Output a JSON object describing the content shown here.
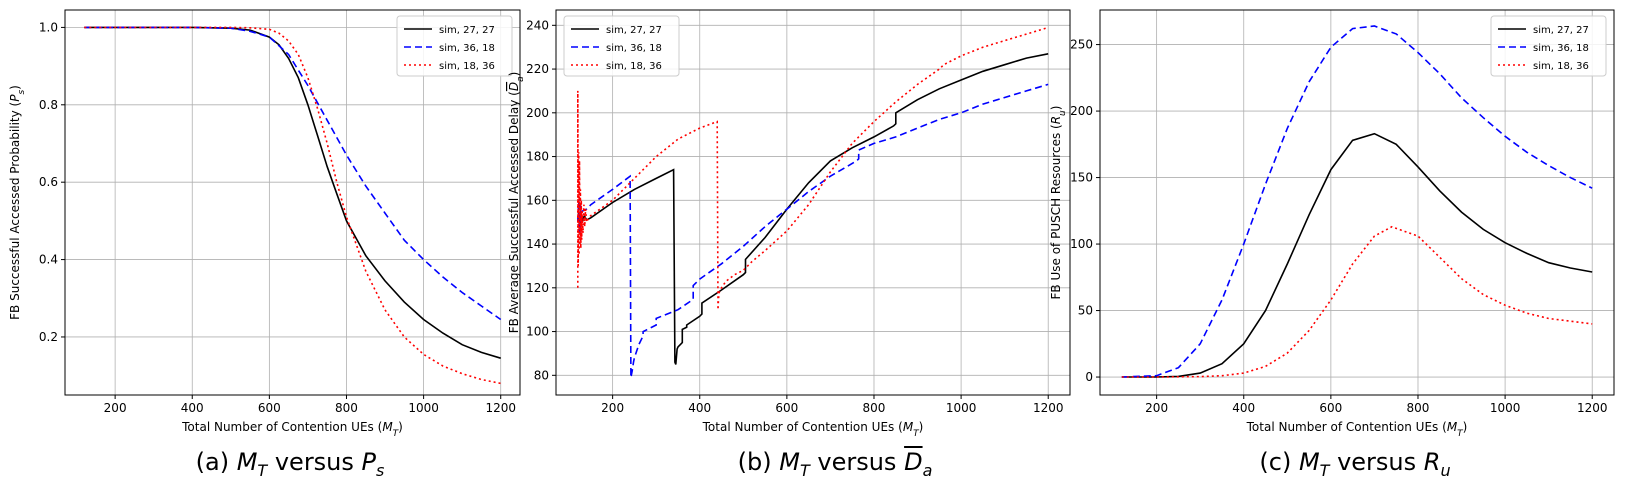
{
  "captions": [
    {
      "prefix": "(a)",
      "lhs": "M",
      "lhs_sub": "T",
      "mid": "versus",
      "rhs": "P",
      "rhs_sub": "s",
      "rhs_overline": false
    },
    {
      "prefix": "(b)",
      "lhs": "M",
      "lhs_sub": "T",
      "mid": "versus",
      "rhs": "D",
      "rhs_sub": "a",
      "rhs_overline": true
    },
    {
      "prefix": "(c)",
      "lhs": "M",
      "lhs_sub": "T",
      "mid": "versus",
      "rhs": "R",
      "rhs_sub": "u",
      "rhs_overline": false
    }
  ],
  "colors": {
    "sim_27_27": "#000000",
    "sim_36_18": "#0000ff",
    "sim_18_36": "#ff0000",
    "grid": "#b0b0b0"
  },
  "chart_data": [
    {
      "type": "line",
      "xlabel": "Total Number of Contention UEs (M_T)",
      "ylabel": "FB Successful Accessed Probability (P_s)",
      "xlim": [
        70,
        1250
      ],
      "ylim": [
        0.05,
        1.045
      ],
      "xticks": [
        200,
        400,
        600,
        800,
        1000,
        1200
      ],
      "yticks": [
        0.2,
        0.4,
        0.6,
        0.8,
        1.0
      ],
      "ytick_labels": [
        "0.2",
        "0.4",
        "0.6",
        "0.8",
        "1.0"
      ],
      "grid": true,
      "legend": "upper-right",
      "series": [
        {
          "name": "sim, 27, 27",
          "style": "solid",
          "color": "#000000",
          "x": [
            120,
            200,
            300,
            400,
            500,
            550,
            600,
            625,
            650,
            675,
            700,
            725,
            750,
            775,
            800,
            850,
            900,
            950,
            1000,
            1050,
            1100,
            1150,
            1200
          ],
          "y": [
            1.0,
            1.0,
            1.0,
            1.0,
            0.998,
            0.993,
            0.975,
            0.955,
            0.92,
            0.87,
            0.8,
            0.72,
            0.64,
            0.57,
            0.5,
            0.41,
            0.345,
            0.29,
            0.245,
            0.21,
            0.18,
            0.16,
            0.145
          ]
        },
        {
          "name": "sim, 36, 18",
          "style": "dashed",
          "color": "#0000ff",
          "x": [
            120,
            200,
            300,
            400,
            500,
            550,
            600,
            650,
            700,
            750,
            800,
            850,
            900,
            950,
            1000,
            1050,
            1100,
            1150,
            1200
          ],
          "y": [
            1.0,
            1.0,
            1.0,
            1.0,
            0.998,
            0.99,
            0.975,
            0.93,
            0.85,
            0.76,
            0.67,
            0.59,
            0.52,
            0.45,
            0.4,
            0.355,
            0.315,
            0.28,
            0.245
          ]
        },
        {
          "name": "sim, 18, 36",
          "style": "dotted",
          "color": "#ff0000",
          "x": [
            120,
            200,
            300,
            400,
            500,
            550,
            600,
            625,
            650,
            675,
            700,
            725,
            750,
            775,
            800,
            850,
            900,
            950,
            1000,
            1050,
            1100,
            1150,
            1200
          ],
          "y": [
            1.0,
            1.0,
            1.0,
            1.0,
            1.0,
            0.999,
            0.995,
            0.985,
            0.965,
            0.93,
            0.87,
            0.79,
            0.7,
            0.6,
            0.51,
            0.37,
            0.27,
            0.2,
            0.155,
            0.125,
            0.105,
            0.09,
            0.08
          ]
        }
      ]
    },
    {
      "type": "line",
      "xlabel": "Total Number of Contention UEs (M_T)",
      "ylabel": "FB Average Successful Accessed Delay (D_a)",
      "xlim": [
        70,
        1250
      ],
      "ylim": [
        71,
        247
      ],
      "xticks": [
        200,
        400,
        600,
        800,
        1000,
        1200
      ],
      "yticks": [
        80,
        100,
        120,
        140,
        160,
        180,
        200,
        220,
        240
      ],
      "ytick_labels": [
        "80",
        "100",
        "120",
        "140",
        "160",
        "180",
        "200",
        "220",
        "240"
      ],
      "grid": true,
      "legend": "upper-left",
      "series": [
        {
          "name": "sim, 27, 27",
          "style": "solid",
          "color": "#000000",
          "x": [
            120,
            122,
            125,
            128,
            130,
            135,
            140,
            150,
            200,
            250,
            300,
            340,
            343,
            345,
            348,
            350,
            360,
            360,
            370,
            370,
            400,
            405,
            405,
            450,
            500,
            505,
            505,
            550,
            600,
            650,
            700,
            750,
            800,
            845,
            850,
            850,
            900,
            950,
            1000,
            1050,
            1100,
            1150,
            1200
          ],
          "y": [
            150,
            155,
            148,
            152,
            150,
            153,
            151,
            152,
            159,
            165,
            170,
            174,
            86,
            85,
            92,
            93,
            95,
            101,
            102,
            103,
            107,
            108,
            113,
            119,
            126,
            127,
            133,
            143,
            156,
            168,
            178,
            184,
            189,
            194,
            195,
            200,
            206,
            211,
            215,
            219,
            222,
            225,
            227
          ]
        },
        {
          "name": "sim, 36, 18",
          "style": "dashed",
          "color": "#0000ff",
          "x": [
            120,
            122,
            124,
            126,
            128,
            130,
            140,
            150,
            200,
            240,
            242,
            245,
            248,
            250,
            255,
            260,
            270,
            270,
            300,
            300,
            350,
            380,
            385,
            385,
            400,
            450,
            500,
            550,
            600,
            650,
            700,
            760,
            765,
            765,
            800,
            850,
            900,
            950,
            1000,
            1050,
            1100,
            1150,
            1200
          ],
          "y": [
            150,
            160,
            145,
            158,
            150,
            155,
            156,
            158,
            165,
            171,
            79,
            82,
            86,
            88,
            91,
            94,
            98,
            100,
            103,
            106,
            110,
            114,
            115,
            121,
            124,
            131,
            139,
            148,
            156,
            164,
            171,
            178,
            179,
            183,
            186,
            189,
            193,
            197,
            200,
            204,
            207,
            210,
            213
          ]
        },
        {
          "name": "sim, 18, 36",
          "style": "dotted",
          "color": "#ff0000",
          "x": [
            120,
            120,
            121,
            122,
            123,
            124,
            125,
            126,
            127,
            128,
            129,
            130,
            132,
            134,
            136,
            138,
            140,
            145,
            150,
            200,
            250,
            300,
            350,
            400,
            440,
            442,
            443,
            445,
            450,
            460,
            480,
            500,
            520,
            550,
            600,
            650,
            700,
            750,
            800,
            850,
            900,
            950,
            955,
            960,
            1000,
            1050,
            1100,
            1150,
            1200
          ],
          "y": [
            120,
            210,
            130,
            182,
            135,
            178,
            140,
            165,
            138,
            160,
            142,
            155,
            145,
            158,
            148,
            156,
            150,
            152,
            153,
            160,
            170,
            180,
            188,
            193,
            196,
            110,
            115,
            118,
            120,
            123,
            126,
            128,
            132,
            137,
            146,
            158,
            173,
            186,
            196,
            205,
            213,
            220,
            221,
            222,
            226,
            230,
            233,
            236,
            239
          ]
        }
      ]
    },
    {
      "type": "line",
      "xlabel": "Total Number of Contention UEs (M_T)",
      "ylabel": "FB Use of PUSCH Resources (R_u)",
      "xlim": [
        70,
        1250
      ],
      "ylim": [
        -13.5,
        276
      ],
      "xticks": [
        200,
        400,
        600,
        800,
        1000,
        1200
      ],
      "yticks": [
        0,
        50,
        100,
        150,
        200,
        250
      ],
      "ytick_labels": [
        "0",
        "50",
        "100",
        "150",
        "200",
        "250"
      ],
      "grid": true,
      "legend": "upper-right",
      "series": [
        {
          "name": "sim, 27, 27",
          "style": "solid",
          "color": "#000000",
          "x": [
            120,
            200,
            250,
            300,
            350,
            400,
            450,
            500,
            550,
            600,
            650,
            700,
            750,
            800,
            850,
            900,
            950,
            1000,
            1050,
            1100,
            1150,
            1200
          ],
          "y": [
            0,
            0,
            0.5,
            3,
            10,
            25,
            50,
            85,
            122,
            156,
            178,
            183,
            175,
            158,
            140,
            124,
            111,
            101,
            93,
            86,
            82,
            79
          ]
        },
        {
          "name": "sim, 36, 18",
          "style": "dashed",
          "color": "#0000ff",
          "x": [
            120,
            200,
            250,
            300,
            350,
            400,
            450,
            500,
            550,
            600,
            650,
            700,
            750,
            800,
            850,
            900,
            950,
            1000,
            1050,
            1100,
            1150,
            1200
          ],
          "y": [
            0,
            1,
            7,
            25,
            58,
            100,
            145,
            187,
            222,
            248,
            262,
            264,
            258,
            244,
            228,
            210,
            195,
            181,
            169,
            159,
            150,
            142
          ]
        },
        {
          "name": "sim, 18, 36",
          "style": "dotted",
          "color": "#ff0000",
          "x": [
            120,
            200,
            300,
            350,
            400,
            450,
            500,
            550,
            600,
            650,
            700,
            740,
            800,
            850,
            900,
            950,
            1000,
            1050,
            1100,
            1150,
            1200
          ],
          "y": [
            0,
            0,
            0.3,
            1,
            3,
            8,
            18,
            35,
            58,
            85,
            106,
            113,
            106,
            90,
            74,
            62,
            54,
            48,
            44,
            42,
            40
          ]
        }
      ]
    }
  ]
}
